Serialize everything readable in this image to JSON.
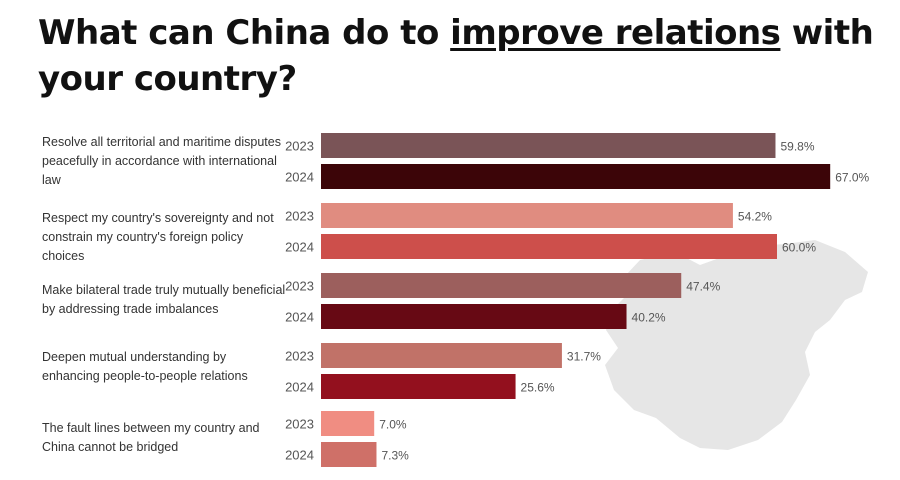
{
  "header": {
    "title_pre": "What can China do to ",
    "title_emph": "improve relations",
    "title_post": " with your country?"
  },
  "colors": {
    "map": "#e6e6e6"
  },
  "chart_data": {
    "type": "bar",
    "orientation": "horizontal",
    "categories": [
      "Resolve all territorial and maritime disputes peacefully in accordance with international law",
      "Respect my country's sovereignty and not constrain my country's foreign policy choices",
      "Make bilateral trade truly mutually beneficial by addressing trade imbalances",
      "Deepen mutual understanding by enhancing people-to-people relations",
      "The fault lines between my country and China cannot be bridged"
    ],
    "series": [
      {
        "name": "2023",
        "values": [
          59.8,
          54.2,
          47.4,
          31.7,
          7.0
        ],
        "labels": [
          "59.8%",
          "54.2%",
          "47.4%",
          "31.7%",
          "7.0%"
        ],
        "colors": [
          "#7a5457",
          "#e08c80",
          "#9c5f5d",
          "#c17268",
          "#f08d82"
        ]
      },
      {
        "name": "2024",
        "values": [
          67.0,
          60.0,
          40.2,
          25.6,
          7.3
        ],
        "labels": [
          "67.0%",
          "60.0%",
          "40.2%",
          "25.6%",
          "7.3%"
        ],
        "colors": [
          "#3c0508",
          "#cd4f4b",
          "#670914",
          "#93101e",
          "#cf7068"
        ]
      }
    ],
    "xlim": [
      0,
      70
    ],
    "grid": false,
    "legend": "none"
  }
}
